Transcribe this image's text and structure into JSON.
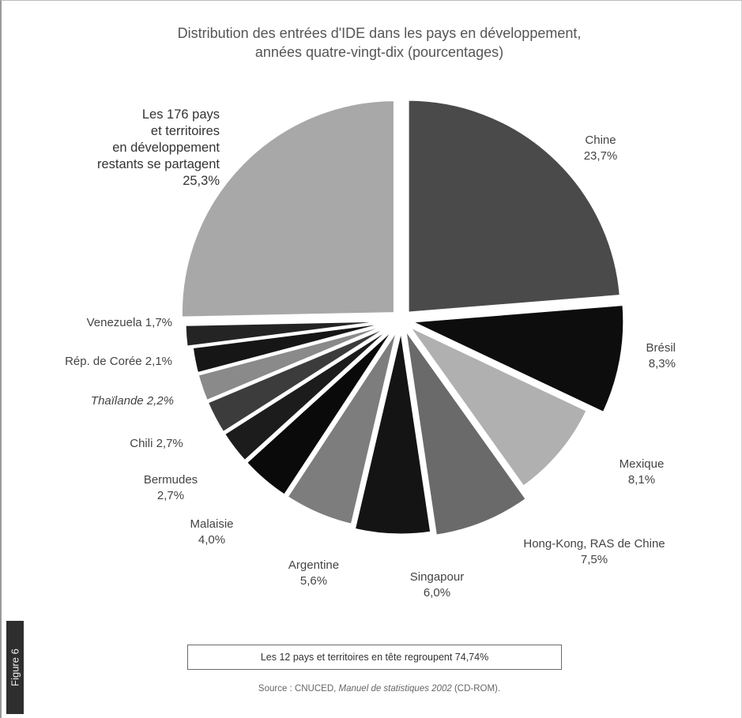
{
  "chart_data": {
    "type": "pie",
    "title": "Distribution des entrées d'IDE dans les pays en développement,",
    "subtitle": "années quatre-vingt-dix (pourcentages)",
    "slices": [
      {
        "label": "Chine",
        "value_label": "23,7%",
        "value": 23.7,
        "color": "#4a4a4a"
      },
      {
        "label": "Brésil",
        "value_label": "8,3%",
        "value": 8.3,
        "color": "#0d0d0d"
      },
      {
        "label": "Mexique",
        "value_label": "8,1%",
        "value": 8.1,
        "color": "#b0b0b0"
      },
      {
        "label": "Hong-Kong, RAS de Chine",
        "value_label": "7,5%",
        "value": 7.5,
        "color": "#6a6a6a"
      },
      {
        "label": "Singapour",
        "value_label": "6,0%",
        "value": 6.0,
        "color": "#141414"
      },
      {
        "label": "Argentine",
        "value_label": "5,6%",
        "value": 5.6,
        "color": "#7d7d7d"
      },
      {
        "label": "Malaisie",
        "value_label": "4,0%",
        "value": 4.0,
        "color": "#0a0a0a"
      },
      {
        "label": "Bermudes",
        "value_label": "2,7%",
        "value": 2.7,
        "color": "#1c1c1c"
      },
      {
        "label": "Chili",
        "value_label": "2,7%",
        "value": 2.7,
        "color": "#3c3c3c"
      },
      {
        "label": "Thaïlande",
        "value_label": "2,2%",
        "value": 2.2,
        "color": "#8a8a8a"
      },
      {
        "label": "Rép. de Corée",
        "value_label": "2,1%",
        "value": 2.1,
        "color": "#161616"
      },
      {
        "label": "Venezuela",
        "value_label": "1,7%",
        "value": 1.7,
        "color": "#242424"
      },
      {
        "label": "Les 176 pays et territoires en développement restants se partagent",
        "label_lines": [
          "Les 176 pays",
          "et territoires",
          "en développement",
          "restants se partagent"
        ],
        "value_label": "25,3%",
        "value": 25.3,
        "color": "#a8a8a8"
      }
    ]
  },
  "summary": "Les 12 pays et territoires en tête regroupent 74,74%",
  "source": {
    "prefix": "Source : CNUCED, ",
    "italic": "Manuel de statistiques 2002",
    "suffix": " (CD-ROM)."
  },
  "figure_tab": "Figure 6"
}
